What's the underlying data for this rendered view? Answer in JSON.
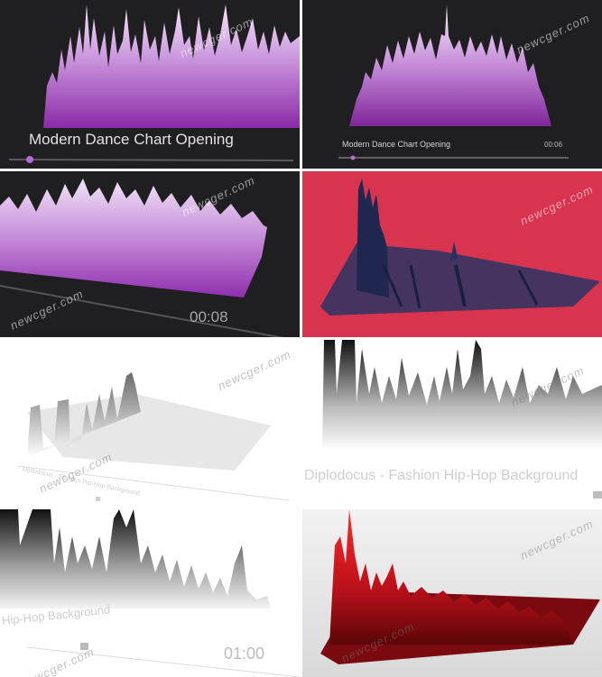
{
  "tiles": [
    {
      "title": "Modern Dance Chart Opening",
      "time": "",
      "watermark": "newcger.com"
    },
    {
      "title": "Modern Dance Chart Opening",
      "time": "00:06",
      "watermark": "newcger.com"
    },
    {
      "title": "",
      "time": "00:08",
      "watermark": "newcger.com"
    },
    {
      "title": "",
      "time": "",
      "watermark": "newcger.com"
    },
    {
      "title": "Diplodocus - Fashion Hip-Hop Background",
      "time": "",
      "watermark": "newcger.com"
    },
    {
      "title": "Diplodocus - Fashion Hip-Hop Background",
      "time": "",
      "watermark": "newcger.com"
    },
    {
      "title": "Hip-Hop Background",
      "time": "01:00",
      "watermark": "newcger.com"
    },
    {
      "title": "",
      "time": "",
      "watermark": "newcger.com"
    }
  ],
  "colors": {
    "purple": "#b56bd1",
    "dark_bg": "#1f1e20",
    "red_bg": "#d83450",
    "navy": "#2b3463",
    "red_mesh": "#c0101a"
  }
}
